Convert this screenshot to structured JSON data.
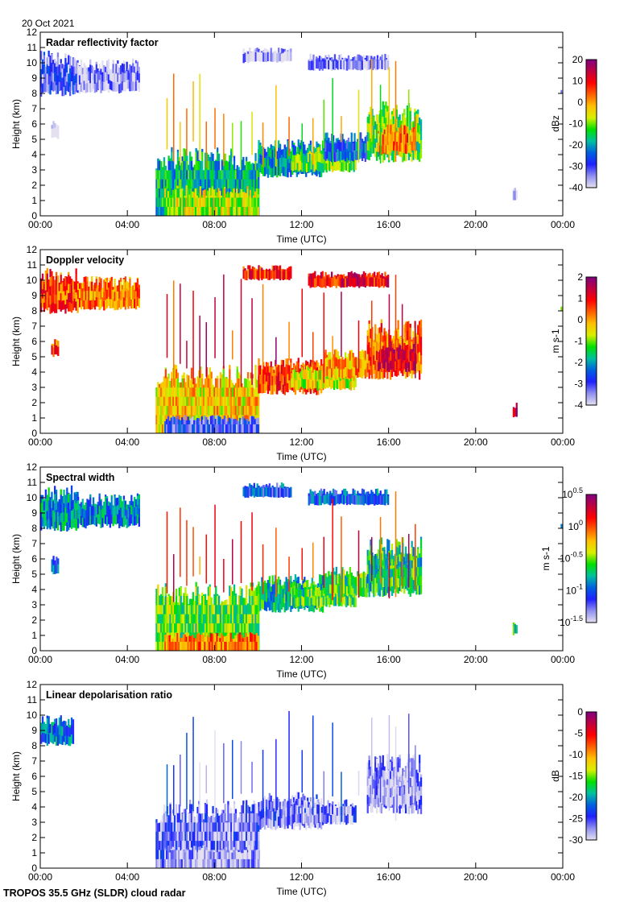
{
  "date_label": "20 Oct 2021",
  "footer": "TROPOS 35.5 GHz (SLDR) cloud radar",
  "colormap": [
    "#e4e0f0",
    "#9090f0",
    "#2020ff",
    "#0060e0",
    "#00c0a0",
    "#00e000",
    "#d8f000",
    "#ffc000",
    "#ff6000",
    "#ff0000",
    "#c00040",
    "#800080"
  ],
  "spike_times": [
    5.8,
    6.1,
    6.4,
    6.7,
    7.0,
    7.3,
    7.6,
    8.0,
    8.4,
    8.8,
    9.2,
    9.7,
    10.2,
    10.8,
    11.4,
    12.0,
    12.5,
    13.0,
    13.4,
    13.8,
    14.6,
    15.2,
    15.6,
    16.0,
    16.3,
    16.6,
    16.9,
    17.2
  ],
  "chart_data": [
    {
      "type": "heatmap",
      "title": "Radar reflectivity factor",
      "xlabel": "Time (UTC)",
      "ylabel": "Height (km)",
      "xlim": [
        0,
        24
      ],
      "ylim": [
        0,
        12
      ],
      "xticks": [
        "00:00",
        "04:00",
        "08:00",
        "12:00",
        "16:00",
        "20:00",
        "00:00"
      ],
      "yticks": [
        "0",
        "1",
        "2",
        "3",
        "4",
        "5",
        "6",
        "7",
        "8",
        "9",
        "10",
        "11",
        "12"
      ],
      "colorbar": {
        "label": "dBz",
        "range": [
          -40,
          20
        ],
        "ticks": [
          "20",
          "10",
          "0",
          "-10",
          "-20",
          "-30",
          "-40"
        ]
      },
      "regions": [
        [
          0,
          1.7,
          7.8,
          10.8,
          -32
        ],
        [
          1.7,
          4.5,
          8,
          10.3,
          -36
        ],
        [
          9.3,
          11.5,
          10,
          11,
          -38
        ],
        [
          12.3,
          16,
          9.5,
          10.6,
          -36
        ],
        [
          0.5,
          0.8,
          5,
          6.2,
          -38
        ],
        [
          5.3,
          10,
          0,
          4.5,
          -18
        ],
        [
          5.7,
          10,
          0,
          2,
          -8
        ],
        [
          10,
          13,
          2.5,
          5,
          -20
        ],
        [
          11.5,
          14.5,
          2.8,
          4.5,
          -12
        ],
        [
          13,
          15,
          3.5,
          5.5,
          -25
        ],
        [
          15,
          17.5,
          3.5,
          7.5,
          -12
        ],
        [
          15.5,
          17.2,
          4,
          6,
          2
        ],
        [
          21.7,
          21.9,
          1,
          2,
          -38
        ],
        [
          23.9,
          24,
          8,
          8.3,
          -38
        ]
      ],
      "spike_value": -5
    },
    {
      "type": "heatmap",
      "title": "Doppler velocity",
      "xlabel": "Time (UTC)",
      "ylabel": "Height (km)",
      "xlim": [
        0,
        24
      ],
      "ylim": [
        0,
        12
      ],
      "xticks": [
        "00:00",
        "04:00",
        "08:00",
        "12:00",
        "16:00",
        "20:00",
        "00:00"
      ],
      "yticks": [
        "0",
        "1",
        "2",
        "3",
        "4",
        "5",
        "6",
        "7",
        "8",
        "9",
        "10",
        "11",
        "12"
      ],
      "colorbar": {
        "label": "m s-1",
        "range": [
          -4,
          2
        ],
        "ticks": [
          "2",
          "1",
          "0",
          "-1",
          "-2",
          "-3",
          "-4"
        ]
      },
      "regions": [
        [
          0,
          1.7,
          7.8,
          10.8,
          0.6
        ],
        [
          1.7,
          4.5,
          8,
          10.3,
          0.2
        ],
        [
          9.3,
          11.5,
          10,
          11,
          0.8
        ],
        [
          12.3,
          16,
          9.5,
          10.6,
          1.0
        ],
        [
          0.5,
          0.8,
          5,
          6.2,
          0.5
        ],
        [
          5.3,
          10,
          0,
          4.5,
          -0.3
        ],
        [
          5.7,
          10,
          0,
          1.2,
          -3
        ],
        [
          10,
          13,
          2.5,
          5,
          0.6
        ],
        [
          11.5,
          14.5,
          2.8,
          4.5,
          -0.6
        ],
        [
          13,
          15,
          3.5,
          5.5,
          0
        ],
        [
          15,
          17.5,
          3.5,
          7.5,
          0.3
        ],
        [
          15.5,
          17.2,
          4,
          6,
          1.3
        ],
        [
          21.7,
          21.9,
          1,
          2,
          1.6
        ],
        [
          23.9,
          24,
          8,
          8.3,
          -0.5
        ]
      ],
      "spike_value": 1
    },
    {
      "type": "heatmap",
      "title": "Spectral width",
      "value_scale": "log10",
      "xlabel": "Time (UTC)",
      "ylabel": "Height (km)",
      "xlim": [
        0,
        24
      ],
      "ylim": [
        0,
        12
      ],
      "xticks": [
        "00:00",
        "04:00",
        "08:00",
        "12:00",
        "16:00",
        "20:00",
        "00:00"
      ],
      "yticks": [
        "0",
        "1",
        "2",
        "3",
        "4",
        "5",
        "6",
        "7",
        "8",
        "9",
        "10",
        "11",
        "12"
      ],
      "colorbar": {
        "label": "m s-1",
        "range": [
          -1.5,
          0.5
        ],
        "ticks": [
          "0.5",
          "0",
          "-0.5",
          "-1",
          "-1.5"
        ],
        "tick_base": "10"
      },
      "regions": [
        [
          0,
          1.7,
          7.8,
          10.8,
          -0.85
        ],
        [
          1.7,
          4.5,
          8,
          10.3,
          -0.9
        ],
        [
          9.3,
          11.5,
          10,
          11,
          -1.05
        ],
        [
          12.3,
          16,
          9.5,
          10.6,
          -1.0
        ],
        [
          0.5,
          0.8,
          5,
          6.2,
          -1.0
        ],
        [
          5.3,
          10,
          0,
          4.5,
          -0.55
        ],
        [
          5.7,
          10,
          0,
          1.2,
          -0.1
        ],
        [
          10,
          13,
          2.5,
          5,
          -0.75
        ],
        [
          11.5,
          14.5,
          2.8,
          4.5,
          -0.6
        ],
        [
          13,
          15,
          3.5,
          5.5,
          -0.6
        ],
        [
          15,
          17.5,
          3.5,
          7.5,
          -0.7
        ],
        [
          15.5,
          17.2,
          4,
          6,
          -0.65
        ],
        [
          21.7,
          21.9,
          1,
          2,
          -0.7
        ],
        [
          23.9,
          24,
          8,
          8.3,
          -1.0
        ]
      ],
      "spike_value": 0.1
    },
    {
      "type": "heatmap",
      "title": "Linear depolarisation ratio",
      "xlabel": "Time (UTC)",
      "ylabel": "Height (km)",
      "xlim": [
        0,
        24
      ],
      "ylim": [
        0,
        12
      ],
      "xticks": [
        "00:00",
        "04:00",
        "08:00",
        "12:00",
        "16:00",
        "20:00",
        "00:00"
      ],
      "yticks": [
        "0",
        "1",
        "2",
        "3",
        "4",
        "5",
        "6",
        "7",
        "8",
        "9",
        "10",
        "11",
        "12"
      ],
      "colorbar": {
        "label": "dB",
        "range": [
          -30,
          0
        ],
        "ticks": [
          "0",
          "-5",
          "-10",
          "-15",
          "-20",
          "-25",
          "-30"
        ]
      },
      "regions": [
        [
          0,
          1.5,
          8,
          10,
          -21
        ],
        [
          5.3,
          10,
          0,
          4.5,
          -27
        ],
        [
          5.7,
          10,
          0,
          1.5,
          -29
        ],
        [
          10,
          13,
          2.5,
          5,
          -27
        ],
        [
          11.5,
          14.5,
          2.8,
          4.5,
          -27
        ],
        [
          15,
          17.5,
          3.5,
          7.5,
          -28
        ],
        [
          15.5,
          17.2,
          4,
          6,
          -29
        ]
      ],
      "spike_value": -26
    }
  ]
}
